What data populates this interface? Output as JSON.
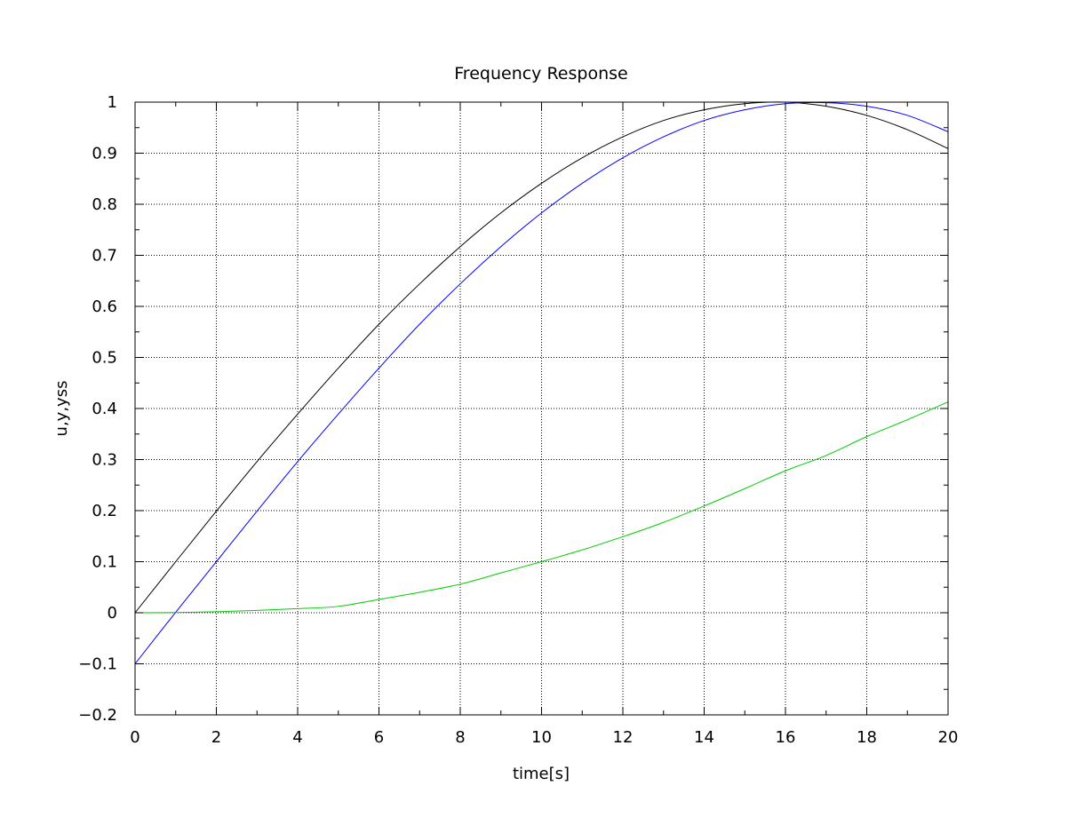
{
  "chart_data": {
    "type": "line",
    "title": "Frequency Response",
    "xlabel": "time[s]",
    "ylabel": "u,y,yss",
    "xlim": [
      0,
      20
    ],
    "ylim": [
      -0.2,
      1
    ],
    "grid": true,
    "x_ticks": [
      "0",
      "2",
      "4",
      "6",
      "8",
      "10",
      "12",
      "14",
      "16",
      "18",
      "20"
    ],
    "y_ticks": [
      "−0.2",
      "−0.1",
      "0",
      "0.1",
      "0.2",
      "0.3",
      "0.4",
      "0.5",
      "0.6",
      "0.7",
      "0.8",
      "0.9",
      "1"
    ],
    "x": [
      0,
      1,
      2,
      3,
      4,
      5,
      6,
      7,
      8,
      9,
      10,
      11,
      12,
      13,
      14,
      15,
      16,
      17,
      18,
      19,
      20
    ],
    "series": [
      {
        "color": "#000000",
        "values": [
          0,
          0.1,
          0.199,
          0.296,
          0.389,
          0.479,
          0.565,
          0.644,
          0.717,
          0.783,
          0.841,
          0.891,
          0.932,
          0.964,
          0.985,
          0.997,
          1.0,
          0.992,
          0.974,
          0.946,
          0.909
        ]
      },
      {
        "color": "#0000ff",
        "values": [
          -0.1,
          0.001,
          0.1,
          0.199,
          0.296,
          0.389,
          0.479,
          0.565,
          0.644,
          0.717,
          0.783,
          0.841,
          0.891,
          0.932,
          0.964,
          0.985,
          0.997,
          0.999,
          0.992,
          0.974,
          0.942
        ]
      },
      {
        "color": "#00cc00",
        "values": [
          0,
          0.0005,
          0.002,
          0.0045,
          0.008,
          0.0125,
          0.026,
          0.04,
          0.056,
          0.078,
          0.1,
          0.123,
          0.149,
          0.177,
          0.209,
          0.243,
          0.278,
          0.308,
          0.345,
          0.378,
          0.413
        ]
      }
    ]
  }
}
